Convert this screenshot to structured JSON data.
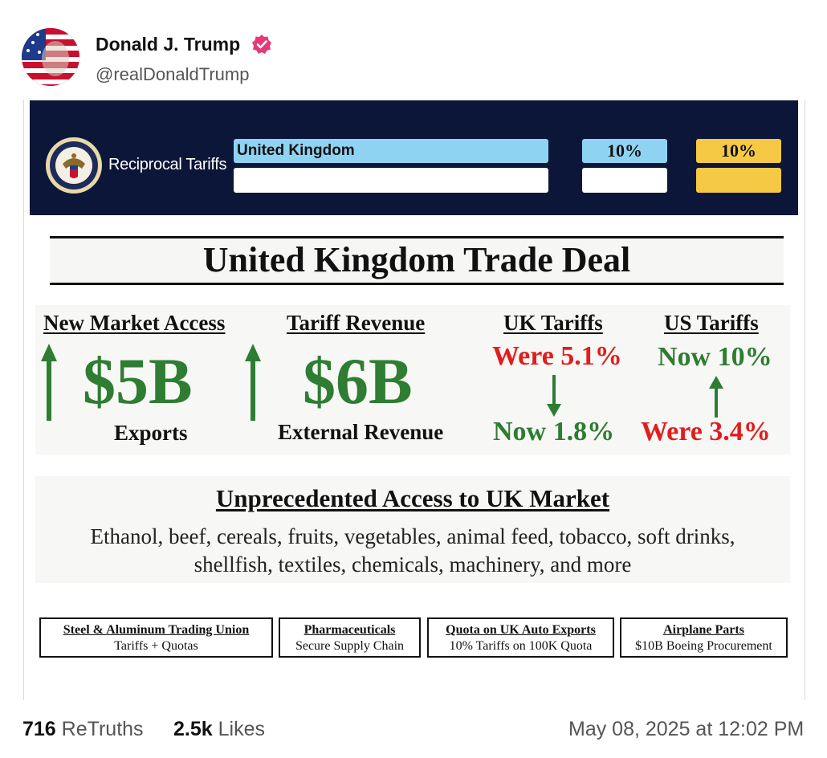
{
  "post": {
    "display_name": "Donald J. Trump",
    "handle": "@realDonaldTrump",
    "retruths_count": "716",
    "retruths_label": "ReTruths",
    "likes_count": "2.5k",
    "likes_label": "Likes",
    "timestamp": "May 08, 2025 at 12:02 PM"
  },
  "image": {
    "banner": {
      "label": "Reciprocal Tariffs",
      "country": "United Kingdom",
      "rate_1": "10%",
      "rate_2": "10%"
    },
    "title": "United Kingdom Trade Deal",
    "market_access": {
      "header": "New Market Access",
      "value": "$5B",
      "caption": "Exports"
    },
    "tariff_revenue": {
      "header": "Tariff Revenue",
      "value": "$6B",
      "caption": "External Revenue"
    },
    "uk_tariffs": {
      "header": "UK Tariffs",
      "were": "Were 5.1%",
      "now": "Now 1.8%"
    },
    "us_tariffs": {
      "header": "US Tariffs",
      "now": "Now 10%",
      "were": "Were 3.4%"
    },
    "access": {
      "title": "Unprecedented Access to UK Market",
      "line_1": "Ethanol, beef, cereals, fruits, vegetables, animal feed, tobacco, soft drinks,",
      "line_2": "shellfish, textiles, chemicals, machinery, and more"
    },
    "boxes": [
      {
        "title": "Steel & Aluminum Trading Union",
        "subtitle": "Tariffs + Quotas"
      },
      {
        "title": "Pharmaceuticals",
        "subtitle": "Secure Supply Chain"
      },
      {
        "title": "Quota on UK Auto Exports",
        "subtitle": "10% Tariffs on 100K Quota"
      },
      {
        "title": "Airplane Parts",
        "subtitle": "$10B Boeing Procurement"
      }
    ]
  },
  "colors": {
    "banner_bg": "#0c1638",
    "light_blue": "#8fd3f2",
    "gold": "#f6c945",
    "green": "#2e7d32",
    "red": "#e11d1d",
    "verified": "#e5397a"
  }
}
